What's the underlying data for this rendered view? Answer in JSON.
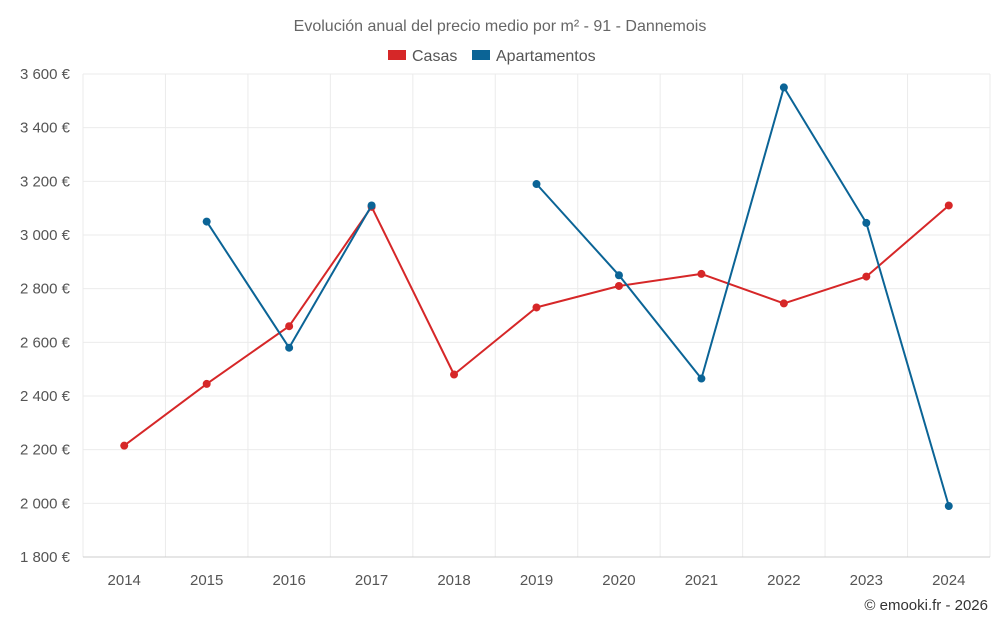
{
  "chart_data": {
    "type": "line",
    "title": "Evolución anual del precio medio por m² - 91 - Dannemois",
    "x": [
      "2014",
      "2015",
      "2016",
      "2017",
      "2018",
      "2019",
      "2020",
      "2021",
      "2022",
      "2023",
      "2024"
    ],
    "series": [
      {
        "name": "Casas",
        "color": "#d62728",
        "values": [
          2215,
          2445,
          2660,
          3105,
          2480,
          2730,
          2810,
          2855,
          2745,
          2845,
          3110
        ]
      },
      {
        "name": "Apartamentos",
        "color": "#0b6496",
        "values": [
          null,
          3050,
          2580,
          3110,
          null,
          3190,
          2850,
          2465,
          3550,
          3045,
          1990
        ]
      }
    ],
    "ylim": [
      1800,
      3600
    ],
    "yticks": [
      "1 800 €",
      "2 000 €",
      "2 200 €",
      "2 400 €",
      "2 600 €",
      "2 800 €",
      "3 000 €",
      "3 200 €",
      "3 400 €",
      "3 600 €"
    ],
    "ytick_values": [
      1800,
      2000,
      2200,
      2400,
      2600,
      2800,
      3000,
      3200,
      3400,
      3600
    ],
    "grid": true,
    "legend": "top-center",
    "credit": "© emooki.fr - 2026"
  }
}
